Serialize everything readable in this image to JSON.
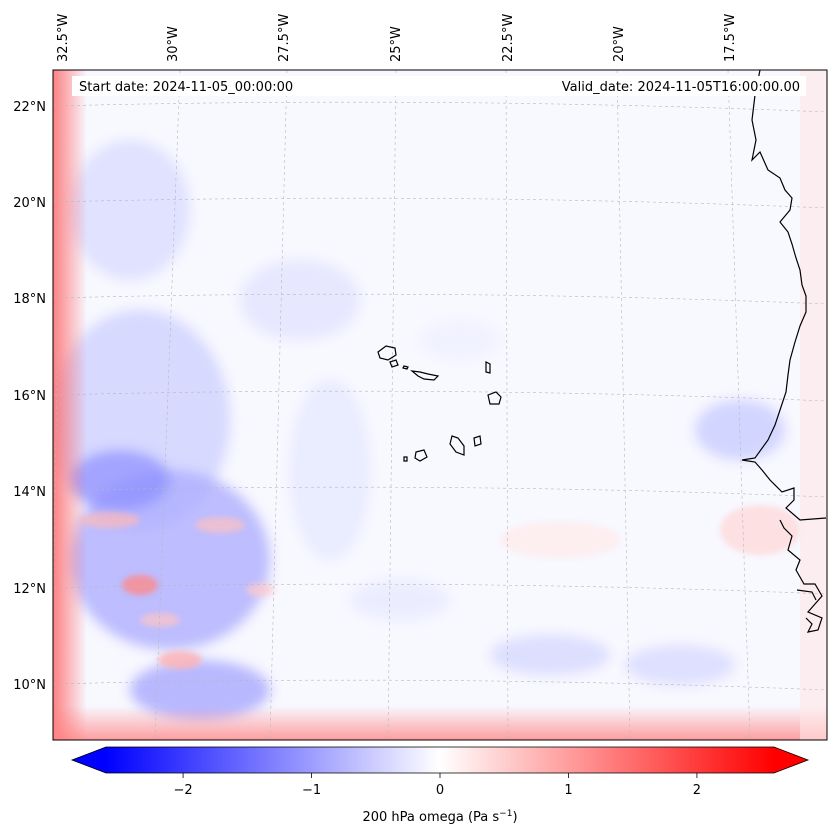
{
  "header": {
    "start_date": "Start date: 2024-11-05_00:00:00",
    "valid_date": "Valid_date: 2024-11-05T16:00:00.00"
  },
  "longitude_labels": [
    "32.5°W",
    "30°W",
    "27.5°W",
    "25°W",
    "22.5°W",
    "20°W",
    "17.5°W"
  ],
  "latitude_labels": [
    "22°N",
    "20°N",
    "18°N",
    "16°N",
    "14°N",
    "12°N",
    "10°N"
  ],
  "colorbar": {
    "ticks": [
      "−2",
      "−1",
      "0",
      "1",
      "2"
    ],
    "tick_values": [
      -2,
      -1,
      0,
      1,
      2
    ],
    "range": [
      -2.6,
      2.6
    ],
    "label": "200 hPa omega (Pa s",
    "label_sup": "−1",
    "label_end": ")",
    "colors": {
      "low": "#0000ff",
      "mid": "#ffffff",
      "high": "#ff0000"
    }
  },
  "map": {
    "projection": "Lambert conformal",
    "extent_lon": [
      -32.8,
      -15.2
    ],
    "extent_lat": [
      8.9,
      22.8
    ],
    "field": "200 hPa omega"
  }
}
